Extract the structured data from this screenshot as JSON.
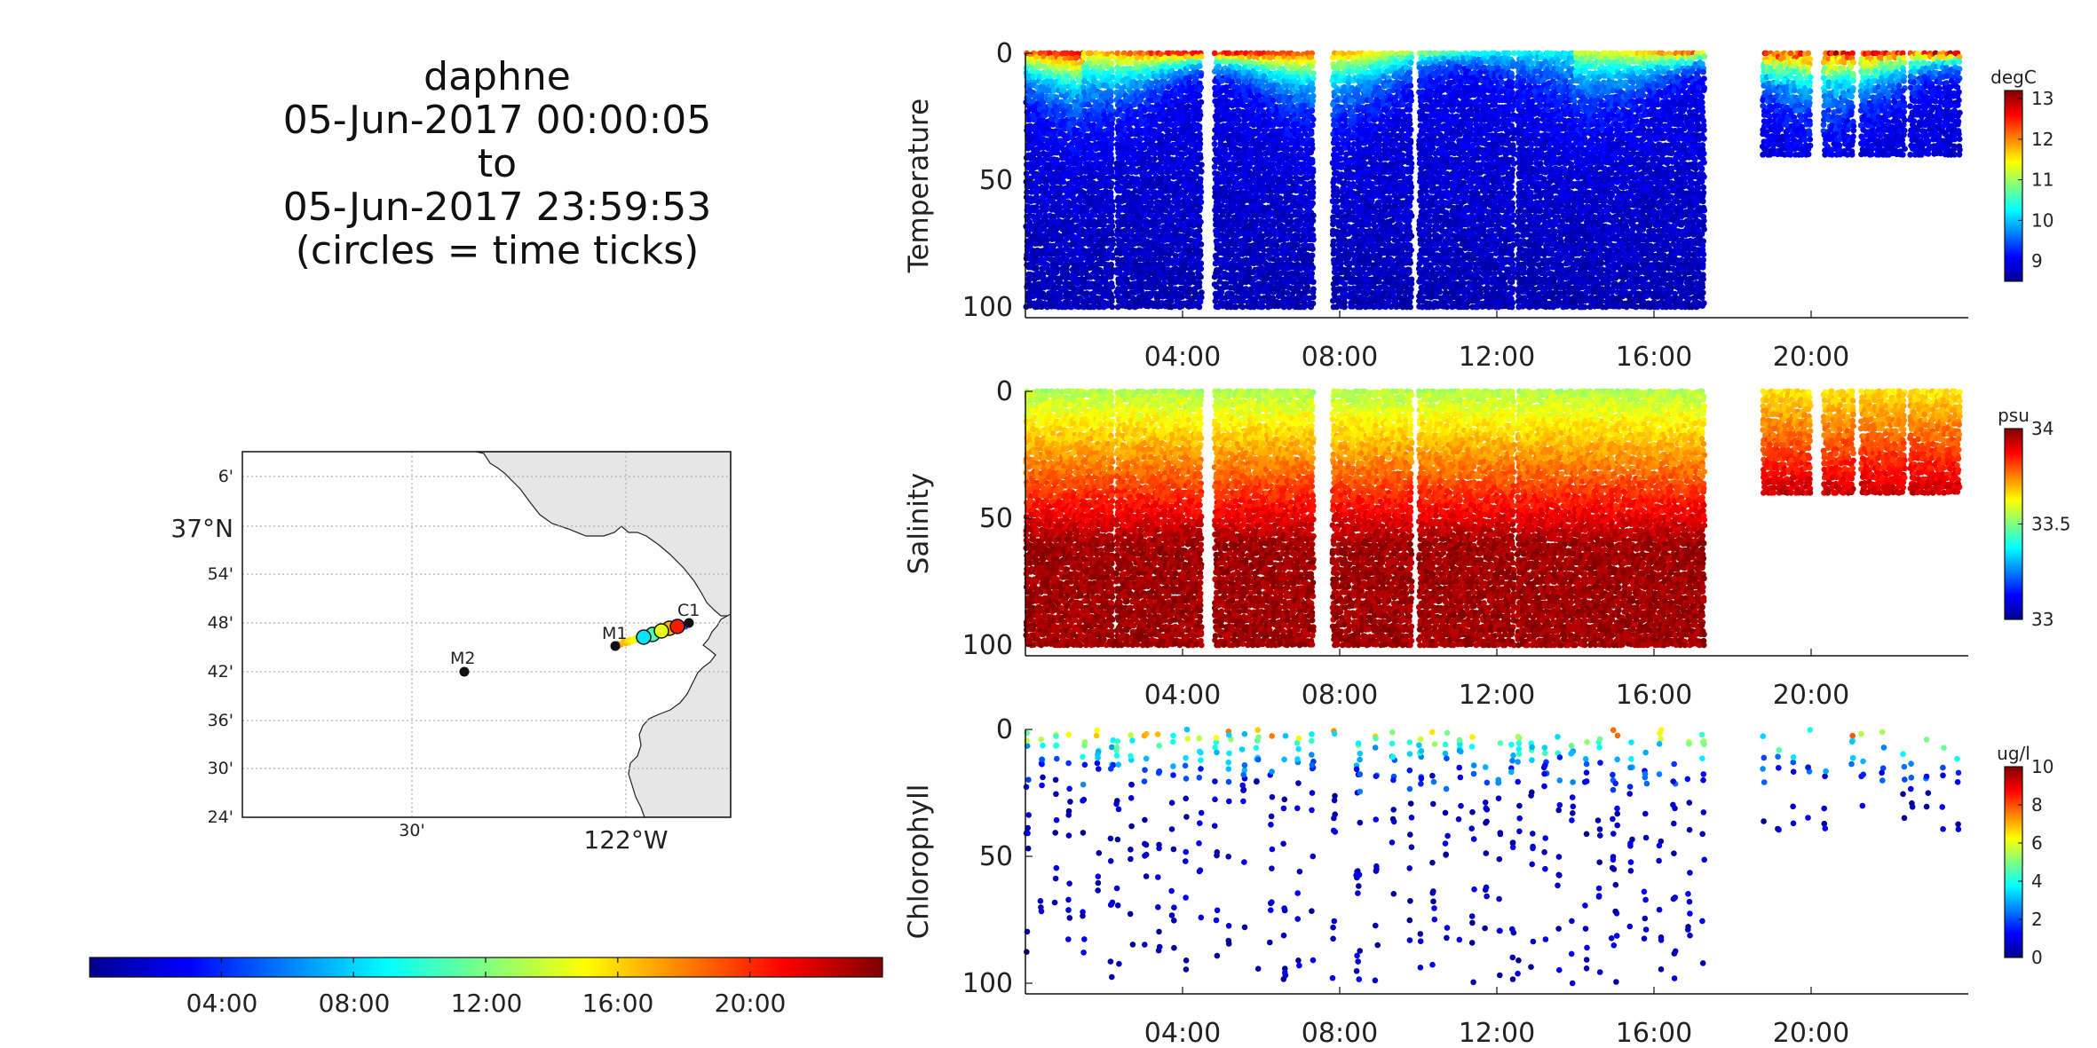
{
  "title": {
    "line1": "daphne",
    "line2": "05-Jun-2017 00:00:05",
    "line3": "to",
    "line4": "05-Jun-2017 23:59:53",
    "line5": "(circles = time ticks)"
  },
  "colors": {
    "jet": [
      "#00008f",
      "#0000ff",
      "#0080ff",
      "#00ffff",
      "#80ff80",
      "#ffff00",
      "#ff8000",
      "#ff0000",
      "#800000"
    ],
    "land": "#e6e6e6",
    "grid": "#b0b0b0"
  },
  "map": {
    "lat_labels": [
      "6'",
      "37°N",
      "54'",
      "48'",
      "42'",
      "36'",
      "30'",
      "24'"
    ],
    "lon_labels": [
      "30'",
      "122°W"
    ],
    "stations": [
      "M1",
      "C1",
      "M2"
    ]
  },
  "time_colorbar": {
    "tick_labels": [
      "04:00",
      "08:00",
      "12:00",
      "16:00",
      "20:00"
    ]
  },
  "chart_data": [
    {
      "type": "scatter",
      "ylabel": "Temperature",
      "units": "degC",
      "clim": [
        8.5,
        13.2
      ],
      "colorbar_ticks": [
        9,
        10,
        11,
        12,
        13
      ],
      "y_ticks": [
        0,
        50,
        100
      ],
      "y_reversed": true,
      "x_ticks": [
        "04:00",
        "08:00",
        "12:00",
        "16:00",
        "20:00"
      ],
      "x_range_hours": [
        0,
        24
      ],
      "profiles": [
        {
          "start": 0.05,
          "end": 2.2,
          "max_depth": 100
        },
        {
          "start": 2.35,
          "end": 4.45,
          "max_depth": 100
        },
        {
          "start": 4.85,
          "end": 7.3,
          "max_depth": 100
        },
        {
          "start": 7.85,
          "end": 8.45,
          "max_depth": 100
        },
        {
          "start": 8.5,
          "end": 9.8,
          "max_depth": 100
        },
        {
          "start": 10.05,
          "end": 12.4,
          "max_depth": 100
        },
        {
          "start": 12.55,
          "end": 14.95,
          "max_depth": 100
        },
        {
          "start": 15.05,
          "end": 17.25,
          "max_depth": 100
        },
        {
          "start": 18.8,
          "end": 19.95,
          "max_depth": 40
        },
        {
          "start": 20.35,
          "end": 21.05,
          "max_depth": 40
        },
        {
          "start": 21.3,
          "end": 22.35,
          "max_depth": 40
        },
        {
          "start": 22.55,
          "end": 23.75,
          "max_depth": 40
        }
      ]
    },
    {
      "type": "scatter",
      "ylabel": "Salinity",
      "units": "psu",
      "clim": [
        33,
        34
      ],
      "colorbar_ticks": [
        33,
        33.5,
        34
      ],
      "y_ticks": [
        0,
        50,
        100
      ],
      "y_reversed": true,
      "x_ticks": [
        "04:00",
        "08:00",
        "12:00",
        "16:00",
        "20:00"
      ],
      "x_range_hours": [
        0,
        24
      ]
    },
    {
      "type": "scatter",
      "ylabel": "Chlorophyll",
      "units": "ug/l",
      "clim": [
        0,
        10
      ],
      "colorbar_ticks": [
        0,
        2,
        4,
        6,
        8,
        10
      ],
      "y_ticks": [
        0,
        50,
        100
      ],
      "y_reversed": true,
      "x_ticks": [
        "04:00",
        "08:00",
        "12:00",
        "16:00",
        "20:00"
      ],
      "x_range_hours": [
        0,
        24
      ]
    }
  ]
}
